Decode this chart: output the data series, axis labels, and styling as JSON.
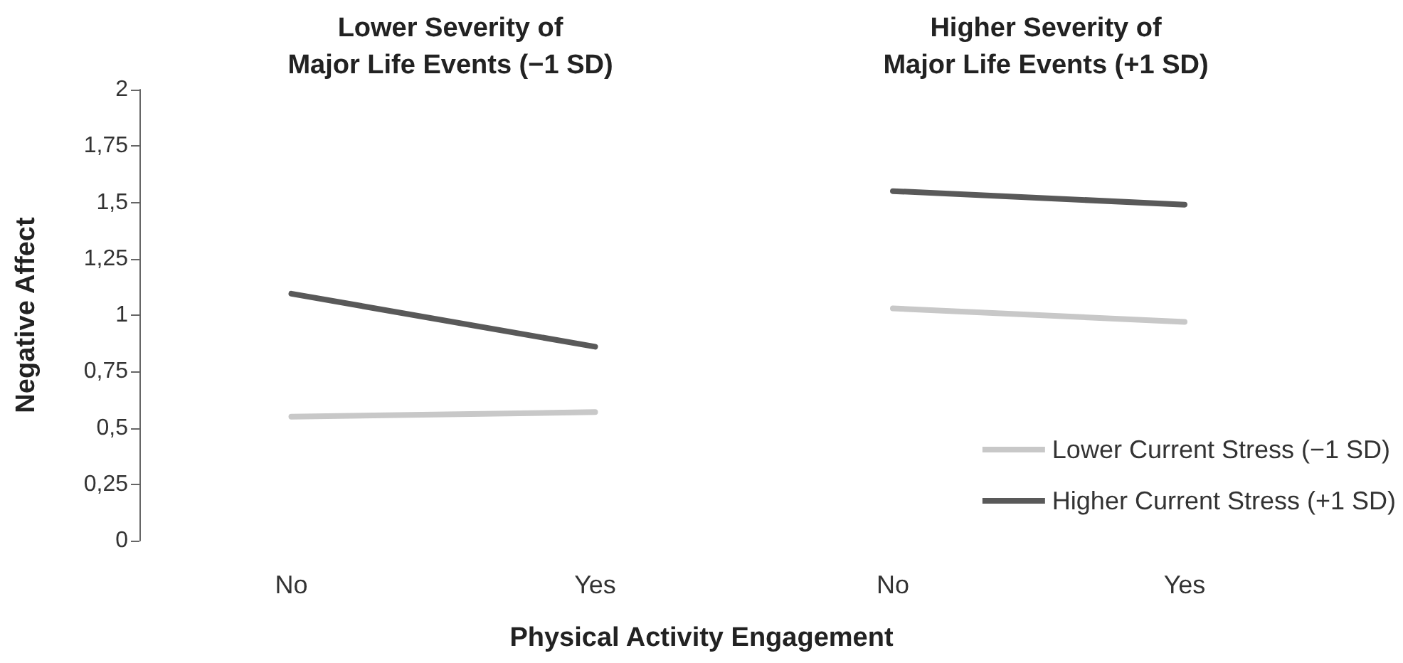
{
  "chart_data": [
    {
      "type": "line",
      "title": "Lower Severity of\nMajor Life Events (−1 SD)",
      "xlabel": "Physical Activity Engagement",
      "ylabel": "Negative Affect",
      "categories": [
        "No",
        "Yes"
      ],
      "series": [
        {
          "color": "#c8c8c8",
          "values": [
            0.55,
            0.57
          ]
        },
        {
          "color": "#595959",
          "values": [
            1.095,
            0.86
          ]
        }
      ],
      "ylim": [
        0,
        2
      ],
      "yticks": [
        0,
        {
          "value": 0.25,
          "label": "0,25"
        },
        {
          "value": 0.5,
          "label": "0,5"
        },
        {
          "value": 0.75,
          "label": "0,75"
        },
        1,
        {
          "value": 1.25,
          "label": "1,25"
        },
        {
          "value": 1.5,
          "label": "1,5"
        },
        {
          "value": 1.75,
          "label": "1,75"
        },
        2
      ],
      "grid": false,
      "legend": false,
      "marker": "none",
      "line_style": "solid"
    },
    {
      "type": "line",
      "title": "Higher Severity of\nMajor Life Events (+1 SD)",
      "categories": [
        "No",
        "Yes"
      ],
      "series": [
        {
          "name": "Lower Current Stress (−1 SD)",
          "color": "#c8c8c8",
          "values": [
            1.03,
            0.97
          ]
        },
        {
          "name": "Higher Current Stress (+1 SD)",
          "color": "#595959",
          "values": [
            1.55,
            1.49
          ]
        }
      ],
      "ylim": [
        0,
        2
      ],
      "tick_labels": "x",
      "grid": false,
      "legend": "bottom right",
      "marker": "none",
      "line_style": "solid"
    }
  ]
}
